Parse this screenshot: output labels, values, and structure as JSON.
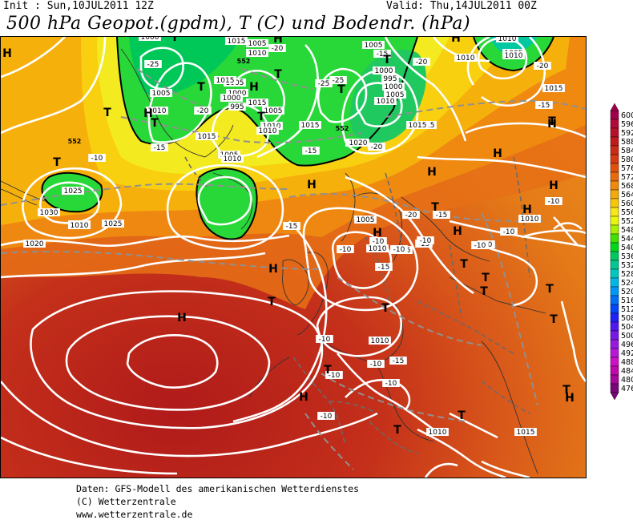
{
  "header": {
    "init": "Init : Sun,10JUL2011 12Z",
    "valid": "Valid: Thu,14JUL2011 00Z",
    "title": "500 hPa Geopot.(gpdm), T (C) und Bodendr. (hPa)"
  },
  "footer": {
    "line1": "Daten: GFS-Modell des amerikanischen Wetterdienstes",
    "line2": "(C) Wetterzentrale",
    "line3": "www.wetterzentrale.de"
  },
  "legend": {
    "levels": [
      {
        "label": "600",
        "color": "#a0004a"
      },
      {
        "label": "596",
        "color": "#b00a3a"
      },
      {
        "label": "592",
        "color": "#b8102a"
      },
      {
        "label": "588",
        "color": "#c01a1a"
      },
      {
        "label": "584",
        "color": "#cc2a14"
      },
      {
        "label": "580",
        "color": "#d63a10"
      },
      {
        "label": "576",
        "color": "#e0520c"
      },
      {
        "label": "572",
        "color": "#e86a0a"
      },
      {
        "label": "568",
        "color": "#f08a08"
      },
      {
        "label": "564",
        "color": "#f4aa08"
      },
      {
        "label": "560",
        "color": "#f8c808"
      },
      {
        "label": "556",
        "color": "#f8e818"
      },
      {
        "label": "552",
        "color": "#e8f808"
      },
      {
        "label": "548",
        "color": "#a8f000"
      },
      {
        "label": "544",
        "color": "#40e000"
      },
      {
        "label": "540",
        "color": "#00d818"
      },
      {
        "label": "536",
        "color": "#00c860"
      },
      {
        "label": "532",
        "color": "#00c890"
      },
      {
        "label": "528",
        "color": "#00c8c0"
      },
      {
        "label": "524",
        "color": "#00b8e8"
      },
      {
        "label": "520",
        "color": "#0098f8"
      },
      {
        "label": "516",
        "color": "#0070f8"
      },
      {
        "label": "512",
        "color": "#0048f8"
      },
      {
        "label": "508",
        "color": "#2020f8"
      },
      {
        "label": "504",
        "color": "#5018f0"
      },
      {
        "label": "500",
        "color": "#7818e8"
      },
      {
        "label": "496",
        "color": "#9818e0"
      },
      {
        "label": "492",
        "color": "#b818d8"
      },
      {
        "label": "488",
        "color": "#d010c8"
      },
      {
        "label": "484",
        "color": "#c008b0"
      },
      {
        "label": "480",
        "color": "#a80898"
      },
      {
        "label": "476",
        "color": "#780878"
      }
    ]
  },
  "map": {
    "pressure_labels": [
      "1015",
      "1010",
      "1005",
      "1000",
      "995",
      "1000",
      "1005",
      "1010",
      "1015",
      "1005",
      "1000",
      "995",
      "1000",
      "1005",
      "1010",
      "1015",
      "1005",
      "1010",
      "1015",
      "1005",
      "1010",
      "1015",
      "1010",
      "1020",
      "1015",
      "1005",
      "1000",
      "995",
      "1000",
      "1005",
      "1010",
      "1015",
      "1015",
      "1010",
      "1005",
      "1010",
      "1010",
      "1015",
      "1020",
      "1025",
      "1030",
      "1025",
      "1020",
      "1015",
      "1010",
      "1005",
      "1010",
      "1015",
      "1010",
      "1010",
      "1015",
      "1010"
    ],
    "temp_labels": [
      "-25",
      "-20",
      "-15",
      "-10",
      "-15",
      "-20",
      "-25",
      "-20",
      "-15",
      "-15",
      "-10",
      "-15",
      "-20",
      "-15",
      "-10",
      "-10",
      "-10",
      "-15",
      "-10",
      "-10",
      "-15",
      "-10",
      "-10",
      "-10",
      "-10",
      "-10",
      "-10",
      "-10",
      "-15",
      "-20",
      "-25",
      "-20"
    ],
    "h_markers": [
      "H",
      "H",
      "H",
      "H",
      "H",
      "H",
      "H",
      "H",
      "H",
      "H",
      "H",
      "H",
      "H",
      "H",
      "H",
      "H",
      "H",
      "H",
      "H",
      "H",
      "H",
      "H"
    ],
    "t_markers": [
      "T",
      "T",
      "T",
      "T",
      "T",
      "T",
      "T",
      "T",
      "T",
      "T",
      "T",
      "T",
      "T",
      "T",
      "T",
      "T",
      "T",
      "T",
      "T",
      "T",
      "T",
      "T",
      "T"
    ],
    "geopotential_contour_labels": [
      "552",
      "552",
      "552"
    ]
  }
}
